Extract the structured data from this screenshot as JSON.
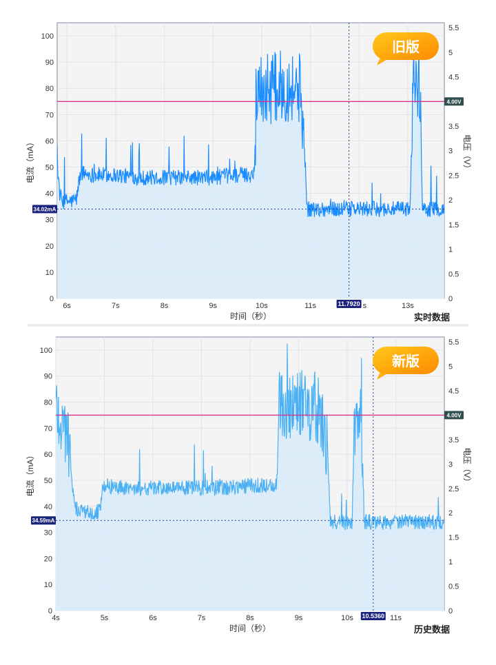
{
  "colors": {
    "plot_bg": "#f4f4f4",
    "grid": "#dfe3ea",
    "axis": "#7d8aa0",
    "signal": "#1a8cff",
    "signal_new": "#4ab0f5",
    "fill": "#d6ebfa",
    "threshold": "#d6338a",
    "cursor": "#1f3a93",
    "badge_bg": "#1a237e",
    "voltage_badge_bg": "#2f4f4f",
    "bubble_start": "#ffc81a",
    "bubble_end": "#ff8a00"
  },
  "chart_data": [
    {
      "type": "line",
      "badge": "旧版",
      "corner_label": "实时数据",
      "xlabel": "时间（秒）",
      "ylabel": "电流（mA）",
      "y2label": "电压（V）",
      "xlim": [
        5.8,
        13.75
      ],
      "ylim": [
        0,
        105
      ],
      "y2lim": [
        0,
        5.6
      ],
      "x_ticks": [
        "6s",
        "7s",
        "8s",
        "9s",
        "10s",
        "11s",
        "",
        "13s"
      ],
      "x_tick_values": [
        6,
        7,
        8,
        9,
        10,
        11,
        12,
        13
      ],
      "y_ticks": [
        0,
        10,
        20,
        30,
        40,
        50,
        60,
        70,
        80,
        90,
        100
      ],
      "y2_ticks": [
        "0",
        "0.5",
        "1",
        "1.5",
        "2",
        "2.5",
        "3",
        "3.5",
        "4",
        "4.5",
        "5",
        "5.5"
      ],
      "y2_tick_values": [
        0,
        0.5,
        1,
        1.5,
        2,
        2.5,
        3,
        3.5,
        4,
        4.5,
        5,
        5.5
      ],
      "cursor_x": 11.792,
      "cursor_label": "11.7920",
      "cursor_suffix": "s",
      "ref_line": 34.02,
      "ref_label": "34.02mA",
      "voltage_line": 4.0,
      "voltage_label": "4.00V",
      "series": [
        {
          "x": [
            5.8,
            5.85,
            5.9,
            6.0,
            6.1,
            6.2,
            6.25,
            6.3,
            6.5,
            7.0,
            7.5,
            8.0,
            8.5,
            9.0,
            9.5,
            9.8,
            9.85,
            9.9,
            10.2,
            10.5,
            10.8,
            10.9,
            10.93,
            11.0,
            11.5,
            12.0,
            12.5,
            13.0,
            13.05,
            13.1,
            13.25,
            13.3,
            13.4,
            13.75
          ],
          "y": [
            52,
            40,
            37,
            37,
            37,
            38,
            45,
            48,
            47,
            47,
            46,
            46,
            46,
            46,
            47,
            47,
            49,
            80,
            80,
            81,
            80,
            49,
            34,
            34,
            34,
            34,
            34,
            34,
            34,
            82,
            81,
            35,
            34,
            34
          ]
        }
      ]
    },
    {
      "type": "line",
      "badge": "新版",
      "corner_label": "历史数据",
      "xlabel": "时间（秒）",
      "ylabel": "电流（mA）",
      "y2label": "电压（V）",
      "xlim": [
        4.0,
        12.0
      ],
      "ylim": [
        0,
        105
      ],
      "y2lim": [
        0,
        5.6
      ],
      "x_ticks": [
        "4s",
        "5s",
        "6s",
        "7s",
        "8s",
        "9s",
        "10s",
        "11s"
      ],
      "x_tick_values": [
        4,
        5,
        6,
        7,
        8,
        9,
        10,
        11
      ],
      "y_ticks": [
        0,
        10,
        20,
        30,
        40,
        50,
        60,
        70,
        80,
        90,
        100
      ],
      "y2_ticks": [
        "0",
        "0.5",
        "1",
        "1.5",
        "2",
        "2.5",
        "3",
        "3.5",
        "4",
        "4.5",
        "5",
        "5.5"
      ],
      "y2_tick_values": [
        0,
        0.5,
        1,
        1.5,
        2,
        2.5,
        3,
        3.5,
        4,
        4.5,
        5,
        5.5
      ],
      "cursor_x": 10.536,
      "cursor_label": "10.5360",
      "cursor_suffix": "",
      "ref_line": 34.59,
      "ref_label": "34.59mA",
      "voltage_line": 4.0,
      "voltage_label": "4.00V",
      "series": [
        {
          "x": [
            4.0,
            4.1,
            4.2,
            4.3,
            4.35,
            4.4,
            4.6,
            4.9,
            4.95,
            5.0,
            5.5,
            6.0,
            6.5,
            7.0,
            7.5,
            8.0,
            8.5,
            8.55,
            8.6,
            9.0,
            9.4,
            9.6,
            9.65,
            9.7,
            10.0,
            10.1,
            10.15,
            10.3,
            10.35,
            10.4,
            11.0,
            11.5,
            12.0
          ],
          "y": [
            80,
            72,
            70,
            60,
            45,
            39,
            38,
            38,
            45,
            48,
            47,
            47,
            47,
            47,
            47,
            48,
            48,
            49,
            78,
            80,
            78,
            60,
            34,
            34,
            34,
            34,
            72,
            72,
            34,
            34,
            34,
            34,
            34
          ]
        }
      ]
    }
  ]
}
